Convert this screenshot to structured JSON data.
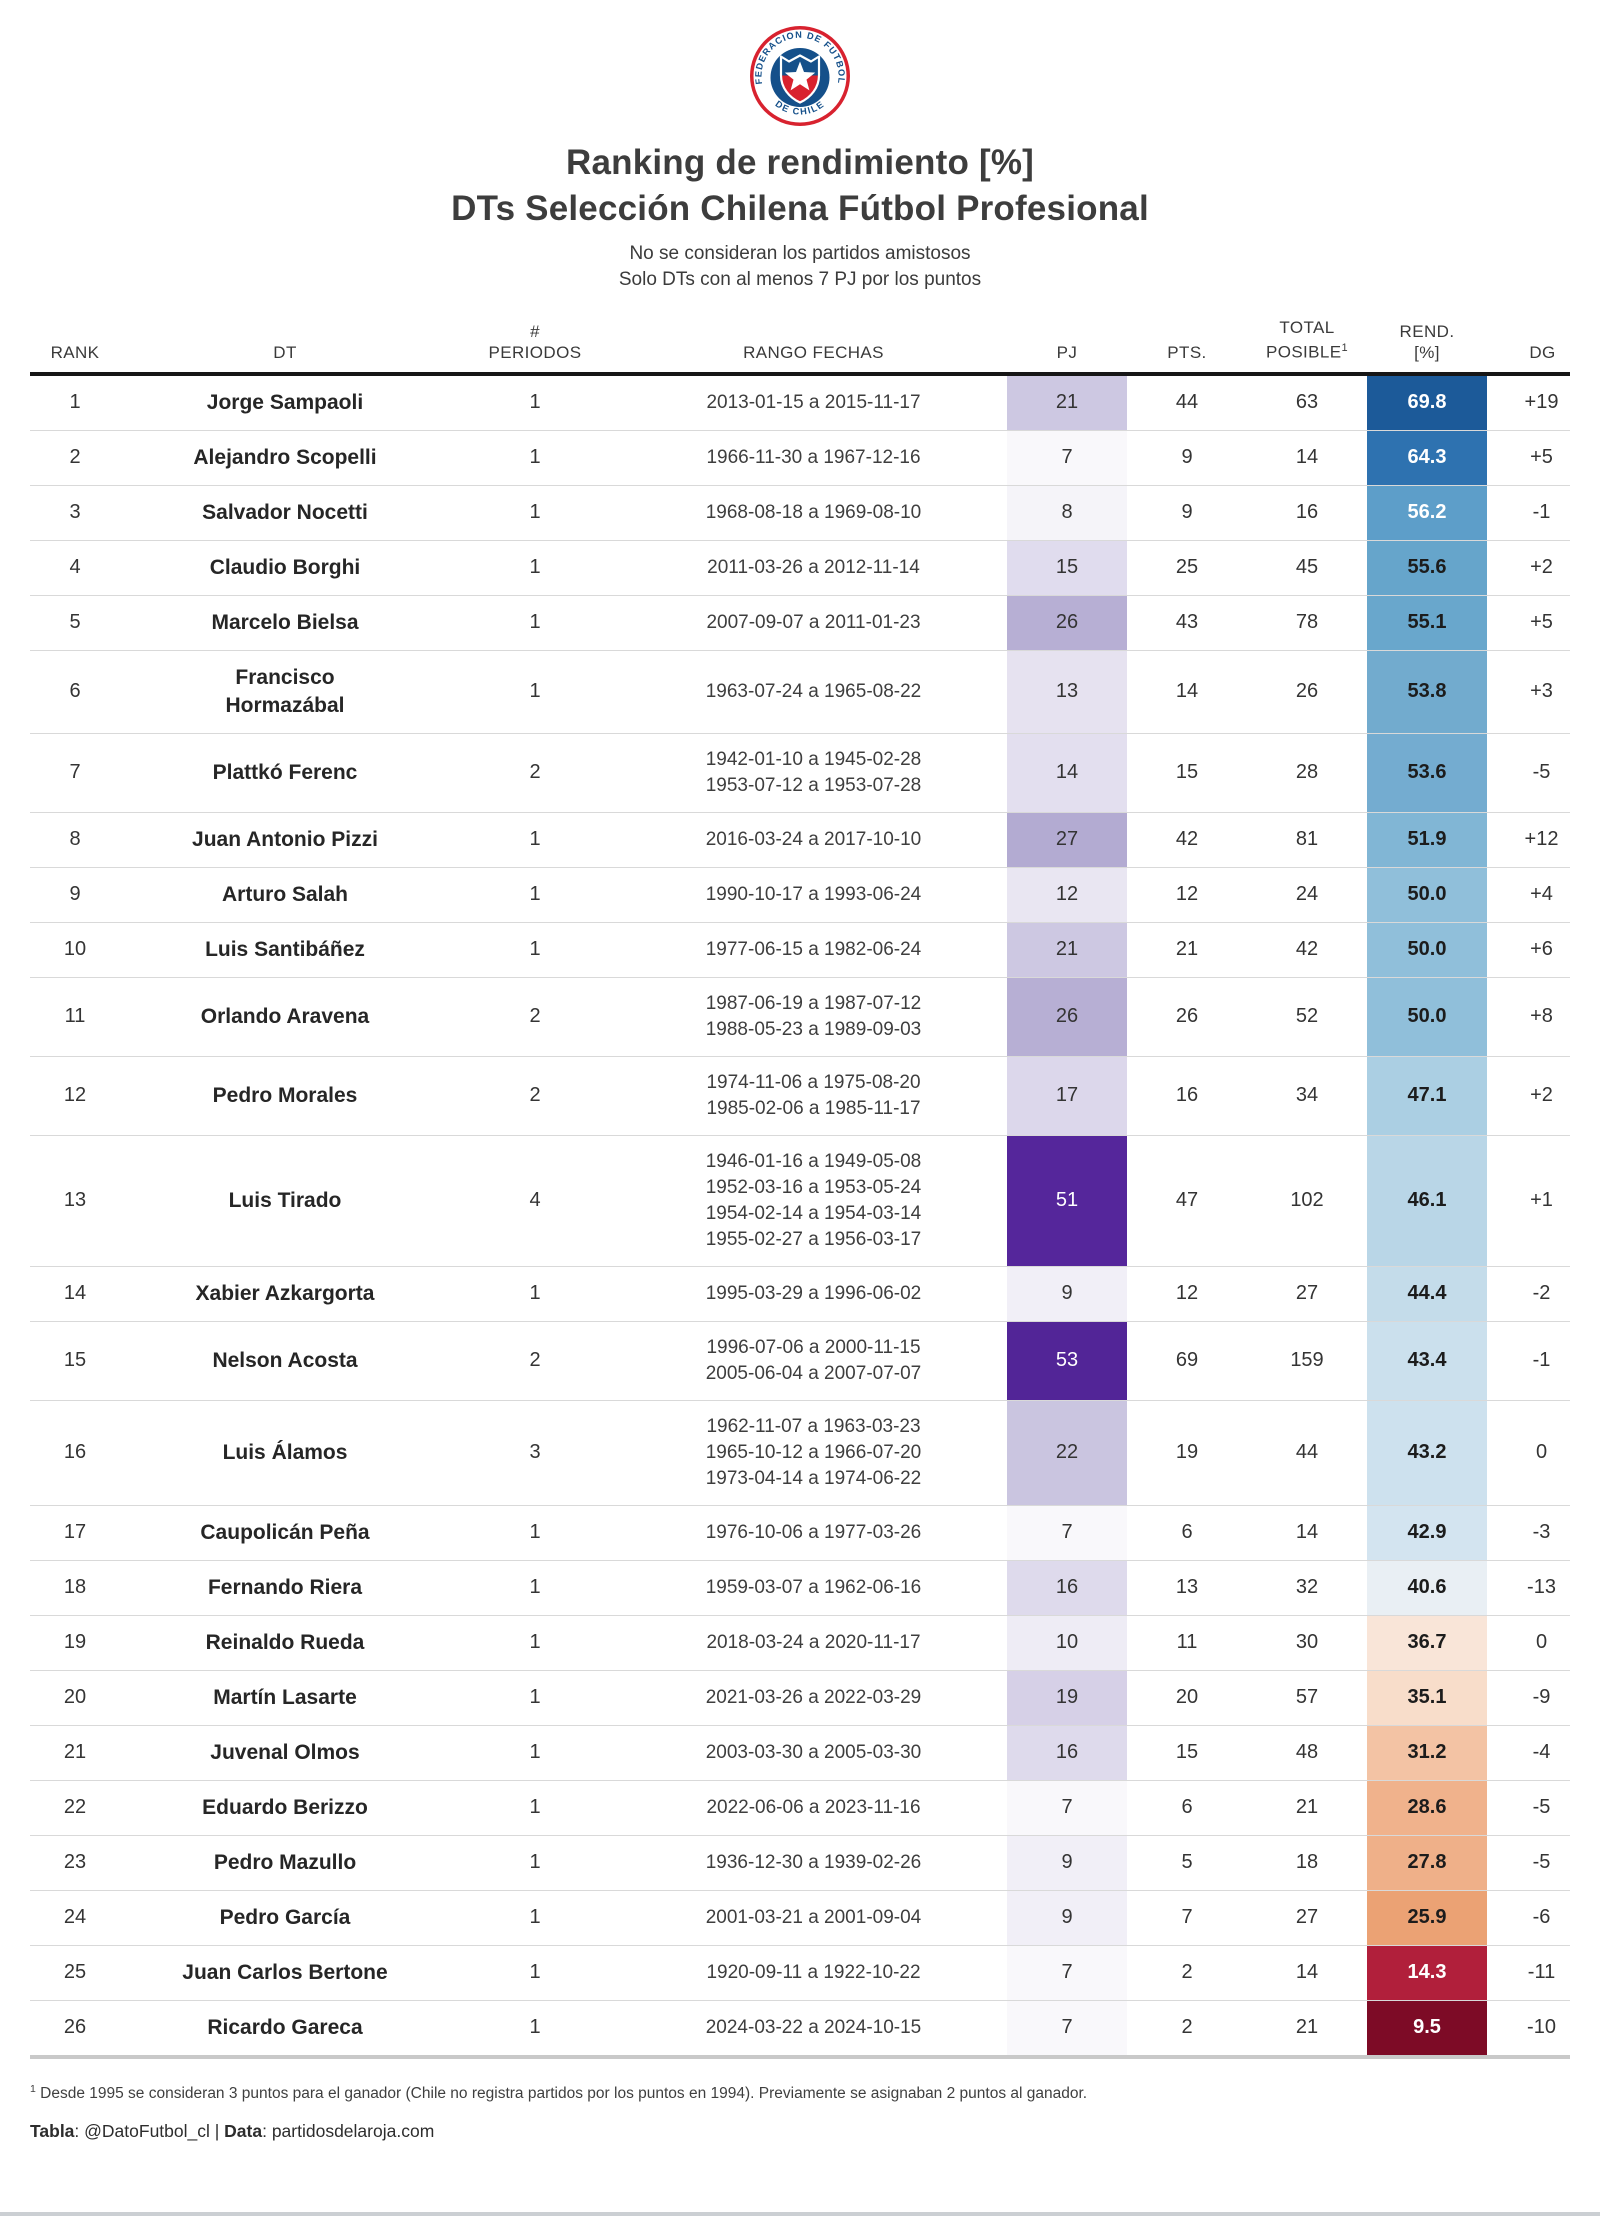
{
  "page": {
    "title_line1": "Ranking de rendimiento [%]",
    "title_line2": "DTs Selección Chilena Fútbol Profesional",
    "subtitle_line1": "No se consideran los partidos amistosos",
    "subtitle_line2": "Solo DTs con al menos 7 PJ por los puntos"
  },
  "logo": {
    "ring_text_top": "FEDERACION DE FUTBOL",
    "ring_text_bottom": "· DE CHILE ·",
    "colors": {
      "red": "#d8222f",
      "blue": "#15508a",
      "white": "#ffffff"
    }
  },
  "chart_data": {
    "type": "table",
    "title": "Ranking de rendimiento [%] DTs Selección Chilena Fútbol Profesional",
    "columns": [
      {
        "key": "rank",
        "label": "RANK"
      },
      {
        "key": "dt",
        "label": "DT"
      },
      {
        "key": "periodos",
        "label": "#\nPERIODOS"
      },
      {
        "key": "fechas",
        "label": "RANGO FECHAS"
      },
      {
        "key": "pj",
        "label": "PJ"
      },
      {
        "key": "pts",
        "label": "PTS."
      },
      {
        "key": "total",
        "label": "TOTAL\nPOSIBLE",
        "sup": "1"
      },
      {
        "key": "rend",
        "label": "REND.\n[%]"
      },
      {
        "key": "dg",
        "label": "DG"
      }
    ],
    "rows": [
      {
        "rank": 1,
        "dt": "Jorge Sampaoli",
        "periodos": 1,
        "fechas": [
          "2013-01-15 a 2015-11-17"
        ],
        "pj": 21,
        "pts": 44,
        "total": 63,
        "rend": "69.8",
        "dg": "+19",
        "pj_bg": "#cdc8e2",
        "pj_fg": "#343434",
        "rend_bg": "#1c5a99",
        "rend_fg": "#ffffff"
      },
      {
        "rank": 2,
        "dt": "Alejandro Scopelli",
        "periodos": 1,
        "fechas": [
          "1966-11-30 a 1967-12-16"
        ],
        "pj": 7,
        "pts": 9,
        "total": 14,
        "rend": "64.3",
        "dg": "+5",
        "pj_bg": "#f9f8fb",
        "pj_fg": "#343434",
        "rend_bg": "#2e72b0",
        "rend_fg": "#ffffff"
      },
      {
        "rank": 3,
        "dt": "Salvador Nocetti",
        "periodos": 1,
        "fechas": [
          "1968-08-18 a 1969-08-10"
        ],
        "pj": 8,
        "pts": 9,
        "total": 16,
        "rend": "56.2",
        "dg": "-1",
        "pj_bg": "#f5f4f9",
        "pj_fg": "#343434",
        "rend_bg": "#5d9ec9",
        "rend_fg": "#ffffff"
      },
      {
        "rank": 4,
        "dt": "Claudio Borghi",
        "periodos": 1,
        "fechas": [
          "2011-03-26 a 2012-11-14"
        ],
        "pj": 15,
        "pts": 25,
        "total": 45,
        "rend": "55.6",
        "dg": "+2",
        "pj_bg": "#e0dcee",
        "pj_fg": "#343434",
        "rend_bg": "#66a5cb",
        "rend_fg": "#1c1c1c"
      },
      {
        "rank": 5,
        "dt": "Marcelo Bielsa",
        "periodos": 1,
        "fechas": [
          "2007-09-07 a 2011-01-23"
        ],
        "pj": 26,
        "pts": 43,
        "total": 78,
        "rend": "55.1",
        "dg": "+5",
        "pj_bg": "#b7afd4",
        "pj_fg": "#343434",
        "rend_bg": "#69a7cc",
        "rend_fg": "#1c1c1c"
      },
      {
        "rank": 6,
        "dt": "Francisco\nHormazábal",
        "periodos": 1,
        "fechas": [
          "1963-07-24 a 1965-08-22"
        ],
        "pj": 13,
        "pts": 14,
        "total": 26,
        "rend": "53.8",
        "dg": "+3",
        "pj_bg": "#e6e2f0",
        "pj_fg": "#343434",
        "rend_bg": "#72abce",
        "rend_fg": "#1c1c1c"
      },
      {
        "rank": 7,
        "dt": "Plattkó Ferenc",
        "periodos": 2,
        "fechas": [
          "1942-01-10 a 1945-02-28",
          "1953-07-12 a 1953-07-28"
        ],
        "pj": 14,
        "pts": 15,
        "total": 28,
        "rend": "53.6",
        "dg": "-5",
        "pj_bg": "#e3dfef",
        "pj_fg": "#343434",
        "rend_bg": "#74acd0",
        "rend_fg": "#1c1c1c"
      },
      {
        "rank": 8,
        "dt": "Juan Antonio Pizzi",
        "periodos": 1,
        "fechas": [
          "2016-03-24 a 2017-10-10"
        ],
        "pj": 27,
        "pts": 42,
        "total": 81,
        "rend": "51.9",
        "dg": "+12",
        "pj_bg": "#b3abd2",
        "pj_fg": "#343434",
        "rend_bg": "#81b6d5",
        "rend_fg": "#1c1c1c"
      },
      {
        "rank": 9,
        "dt": "Arturo Salah",
        "periodos": 1,
        "fechas": [
          "1990-10-17 a 1993-06-24"
        ],
        "pj": 12,
        "pts": 12,
        "total": 24,
        "rend": "50.0",
        "dg": "+4",
        "pj_bg": "#e9e6f2",
        "pj_fg": "#343434",
        "rend_bg": "#90bfda",
        "rend_fg": "#1c1c1c"
      },
      {
        "rank": 10,
        "dt": "Luis Santibáñez",
        "periodos": 1,
        "fechas": [
          "1977-06-15 a 1982-06-24"
        ],
        "pj": 21,
        "pts": 21,
        "total": 42,
        "rend": "50.0",
        "dg": "+6",
        "pj_bg": "#cdc8e2",
        "pj_fg": "#343434",
        "rend_bg": "#90bfda",
        "rend_fg": "#1c1c1c"
      },
      {
        "rank": 11,
        "dt": "Orlando Aravena",
        "periodos": 2,
        "fechas": [
          "1987-06-19 a 1987-07-12",
          "1988-05-23 a 1989-09-03"
        ],
        "pj": 26,
        "pts": 26,
        "total": 52,
        "rend": "50.0",
        "dg": "+8",
        "pj_bg": "#b7afd4",
        "pj_fg": "#343434",
        "rend_bg": "#90bfda",
        "rend_fg": "#1c1c1c"
      },
      {
        "rank": 12,
        "dt": "Pedro Morales",
        "periodos": 2,
        "fechas": [
          "1974-11-06 a 1975-08-20",
          "1985-02-06 a 1985-11-17"
        ],
        "pj": 17,
        "pts": 16,
        "total": 34,
        "rend": "47.1",
        "dg": "+2",
        "pj_bg": "#dcd7eb",
        "pj_fg": "#343434",
        "rend_bg": "#abcfe3",
        "rend_fg": "#1c1c1c"
      },
      {
        "rank": 13,
        "dt": "Luis Tirado",
        "periodos": 4,
        "fechas": [
          "1946-01-16 a 1949-05-08",
          "1952-03-16 a 1953-05-24",
          "1954-02-14 a 1954-03-14",
          "1955-02-27 a 1956-03-17"
        ],
        "pj": 51,
        "pts": 47,
        "total": 102,
        "rend": "46.1",
        "dg": "+1",
        "pj_bg": "#55269b",
        "pj_fg": "#ffffff",
        "rend_bg": "#b9d6e7",
        "rend_fg": "#1c1c1c"
      },
      {
        "rank": 14,
        "dt": "Xabier Azkargorta",
        "periodos": 1,
        "fechas": [
          "1995-03-29 a 1996-06-02"
        ],
        "pj": 9,
        "pts": 12,
        "total": 27,
        "rend": "44.4",
        "dg": "-2",
        "pj_bg": "#f1eff7",
        "pj_fg": "#343434",
        "rend_bg": "#c4dcea",
        "rend_fg": "#1c1c1c"
      },
      {
        "rank": 15,
        "dt": "Nelson Acosta",
        "periodos": 2,
        "fechas": [
          "1996-07-06 a 2000-11-15",
          "2005-06-04 a 2007-07-07"
        ],
        "pj": 53,
        "pts": 69,
        "total": 159,
        "rend": "43.4",
        "dg": "-1",
        "pj_bg": "#522597",
        "pj_fg": "#ffffff",
        "rend_bg": "#cbe0ed",
        "rend_fg": "#1c1c1c"
      },
      {
        "rank": 16,
        "dt": "Luis Álamos",
        "periodos": 3,
        "fechas": [
          "1962-11-07 a 1963-03-23",
          "1965-10-12 a 1966-07-20",
          "1973-04-14 a 1974-06-22"
        ],
        "pj": 22,
        "pts": 19,
        "total": 44,
        "rend": "43.2",
        "dg": "0",
        "pj_bg": "#cac5e0",
        "pj_fg": "#343434",
        "rend_bg": "#cde1ee",
        "rend_fg": "#1c1c1c"
      },
      {
        "rank": 17,
        "dt": "Caupolicán Peña",
        "periodos": 1,
        "fechas": [
          "1976-10-06 a 1977-03-26"
        ],
        "pj": 7,
        "pts": 6,
        "total": 14,
        "rend": "42.9",
        "dg": "-3",
        "pj_bg": "#f9f8fb",
        "pj_fg": "#343434",
        "rend_bg": "#d3e4f0",
        "rend_fg": "#1c1c1c"
      },
      {
        "rank": 18,
        "dt": "Fernando Riera",
        "periodos": 1,
        "fechas": [
          "1959-03-07 a 1962-06-16"
        ],
        "pj": 16,
        "pts": 13,
        "total": 32,
        "rend": "40.6",
        "dg": "-13",
        "pj_bg": "#dedaec",
        "pj_fg": "#343434",
        "rend_bg": "#e9eff4",
        "rend_fg": "#1c1c1c"
      },
      {
        "rank": 19,
        "dt": "Reinaldo Rueda",
        "periodos": 1,
        "fechas": [
          "2018-03-24 a 2020-11-17"
        ],
        "pj": 10,
        "pts": 11,
        "total": 30,
        "rend": "36.7",
        "dg": "0",
        "pj_bg": "#eeecf5",
        "pj_fg": "#343434",
        "rend_bg": "#f9e5d8",
        "rend_fg": "#1c1c1c"
      },
      {
        "rank": 20,
        "dt": "Martín Lasarte",
        "periodos": 1,
        "fechas": [
          "2021-03-26 a 2022-03-29"
        ],
        "pj": 19,
        "pts": 20,
        "total": 57,
        "rend": "35.1",
        "dg": "-9",
        "pj_bg": "#d6d0e7",
        "pj_fg": "#343434",
        "rend_bg": "#f8ddca",
        "rend_fg": "#1c1c1c"
      },
      {
        "rank": 21,
        "dt": "Juvenal Olmos",
        "periodos": 1,
        "fechas": [
          "2003-03-30 a 2005-03-30"
        ],
        "pj": 16,
        "pts": 15,
        "total": 48,
        "rend": "31.2",
        "dg": "-4",
        "pj_bg": "#dedaec",
        "pj_fg": "#343434",
        "rend_bg": "#f3c3a4",
        "rend_fg": "#1c1c1c"
      },
      {
        "rank": 22,
        "dt": "Eduardo Berizzo",
        "periodos": 1,
        "fechas": [
          "2022-06-06 a 2023-11-16"
        ],
        "pj": 7,
        "pts": 6,
        "total": 21,
        "rend": "28.6",
        "dg": "-5",
        "pj_bg": "#f9f8fb",
        "pj_fg": "#343434",
        "rend_bg": "#f0b28c",
        "rend_fg": "#1c1c1c"
      },
      {
        "rank": 23,
        "dt": "Pedro Mazullo",
        "periodos": 1,
        "fechas": [
          "1936-12-30 a 1939-02-26"
        ],
        "pj": 9,
        "pts": 5,
        "total": 18,
        "rend": "27.8",
        "dg": "-5",
        "pj_bg": "#f1eff7",
        "pj_fg": "#343434",
        "rend_bg": "#efb089",
        "rend_fg": "#1c1c1c"
      },
      {
        "rank": 24,
        "dt": "Pedro García",
        "periodos": 1,
        "fechas": [
          "2001-03-21 a 2001-09-04"
        ],
        "pj": 9,
        "pts": 7,
        "total": 27,
        "rend": "25.9",
        "dg": "-6",
        "pj_bg": "#f1eff7",
        "pj_fg": "#343434",
        "rend_bg": "#eba274",
        "rend_fg": "#1c1c1c"
      },
      {
        "rank": 25,
        "dt": "Juan Carlos Bertone",
        "periodos": 1,
        "fechas": [
          "1920-09-11 a 1922-10-22"
        ],
        "pj": 7,
        "pts": 2,
        "total": 14,
        "rend": "14.3",
        "dg": "-11",
        "pj_bg": "#f9f8fb",
        "pj_fg": "#343434",
        "rend_bg": "#b11f3b",
        "rend_fg": "#ffffff"
      },
      {
        "rank": 26,
        "dt": "Ricardo Gareca",
        "periodos": 1,
        "fechas": [
          "2024-03-22 a 2024-10-15"
        ],
        "pj": 7,
        "pts": 2,
        "total": 21,
        "rend": "9.5",
        "dg": "-10",
        "pj_bg": "#f9f8fb",
        "pj_fg": "#343434",
        "rend_bg": "#7d0b26",
        "rend_fg": "#ffffff"
      }
    ]
  },
  "footer": {
    "footnote_sup": "1",
    "footnote": " Desde 1995 se consideran 3 puntos para el ganador (Chile no registra partidos por los puntos en 1994). Previamente se asignaban 2 puntos al ganador.",
    "credit_label1": "Tabla",
    "credit_sep1": ": @DatoFutbol_cl | ",
    "credit_label2": "Data",
    "credit_sep2": ": partidosdelaroja.com"
  }
}
